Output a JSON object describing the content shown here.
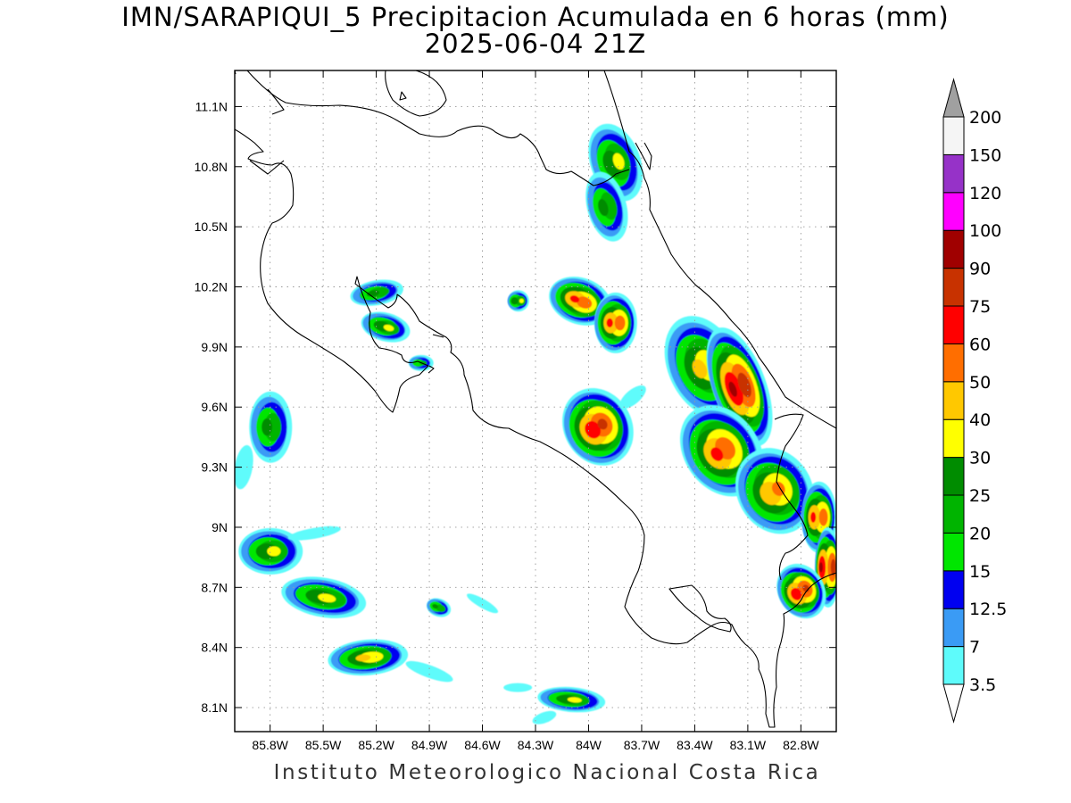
{
  "title": {
    "line1": "IMN/SARAPIQUI_5 Precipitacion Acumulada en 6 horas (mm)",
    "line2": "2025-06-04 21Z"
  },
  "credit": "Instituto Meteorologico Nacional Costa Rica",
  "map": {
    "lon_range": [
      -86.0,
      -82.6
    ],
    "lat_range": [
      7.98,
      11.28
    ],
    "lon_ticks": [
      "85.8W",
      "85.5W",
      "85.2W",
      "84.9W",
      "84.6W",
      "84.3W",
      "84W",
      "83.7W",
      "83.4W",
      "83.1W",
      "82.8W"
    ],
    "lat_ticks": [
      "11.1N",
      "10.8N",
      "10.5N",
      "10.2N",
      "9.9N",
      "9.6N",
      "9.3N",
      "9N",
      "8.7N",
      "8.4N",
      "8.1N"
    ],
    "grid": "dotted"
  },
  "colorbar": {
    "labels": [
      "3.5",
      "7",
      "12.5",
      "15",
      "20",
      "25",
      "30",
      "40",
      "50",
      "60",
      "75",
      "90",
      "100",
      "120",
      "150",
      "200"
    ],
    "colors": [
      "#ffffff",
      "#5efbfb",
      "#3a9bf5",
      "#0000f0",
      "#00e600",
      "#00b400",
      "#008c00",
      "#ffff00",
      "#ffc800",
      "#ff6e00",
      "#ff0000",
      "#c83200",
      "#a00000",
      "#ff00ff",
      "#9632c8",
      "#f5f5f5",
      "#a0a0a0"
    ]
  },
  "chart_data": {
    "type": "heatmap",
    "title": "IMN/SARAPIQUI_5 Precipitacion Acumulada en 6 horas (mm)",
    "subtitle": "2025-06-04 21Z",
    "units": "mm",
    "levels": [
      3.5,
      7,
      12.5,
      15,
      20,
      25,
      30,
      40,
      50,
      60,
      75,
      90,
      100,
      120,
      150,
      200
    ],
    "rain_areas": [
      {
        "lon": -83.85,
        "lat": 10.82,
        "peak": 30
      },
      {
        "lon": -83.9,
        "lat": 10.6,
        "peak": 25
      },
      {
        "lon": -85.2,
        "lat": 10.17,
        "peak": 25
      },
      {
        "lon": -85.15,
        "lat": 10.0,
        "peak": 30
      },
      {
        "lon": -84.95,
        "lat": 9.82,
        "peak": 20
      },
      {
        "lon": -84.05,
        "lat": 10.13,
        "peak": 60
      },
      {
        "lon": -83.85,
        "lat": 10.02,
        "peak": 60
      },
      {
        "lon": -84.4,
        "lat": 10.13,
        "peak": 30
      },
      {
        "lon": -83.95,
        "lat": 9.5,
        "peak": 75
      },
      {
        "lon": -83.35,
        "lat": 9.8,
        "peak": 40
      },
      {
        "lon": -83.15,
        "lat": 9.7,
        "peak": 90
      },
      {
        "lon": -83.25,
        "lat": 9.38,
        "peak": 60
      },
      {
        "lon": -82.95,
        "lat": 9.18,
        "peak": 50
      },
      {
        "lon": -82.7,
        "lat": 9.05,
        "peak": 60
      },
      {
        "lon": -82.65,
        "lat": 8.8,
        "peak": 90
      },
      {
        "lon": -82.8,
        "lat": 8.68,
        "peak": 75
      },
      {
        "lon": -85.8,
        "lat": 9.5,
        "peak": 25
      },
      {
        "lon": -85.8,
        "lat": 8.88,
        "peak": 30
      },
      {
        "lon": -85.5,
        "lat": 8.65,
        "peak": 30
      },
      {
        "lon": -85.25,
        "lat": 8.35,
        "peak": 40
      },
      {
        "lon": -84.85,
        "lat": 8.6,
        "peak": 25
      },
      {
        "lon": -84.1,
        "lat": 8.14,
        "peak": 30
      }
    ]
  }
}
